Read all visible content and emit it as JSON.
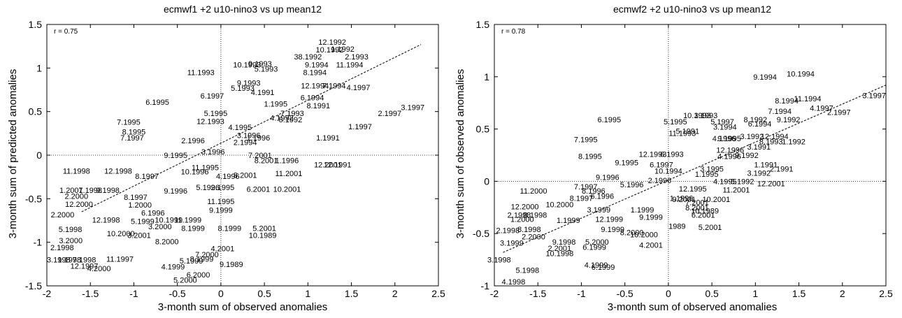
{
  "chart_data": [
    {
      "type": "scatter",
      "title": "ecmwf1 +2 u10-nino3 vs up mean12",
      "xlabel": "3-month sum of observed anomalies",
      "ylabel": "3-month sum of predicted anomalies",
      "annotation": "r = 0.75",
      "xlim": [
        -2,
        2.5
      ],
      "ylim": [
        -1.5,
        1.5
      ],
      "xticks": [
        "-2",
        "-1.5",
        "-1",
        "-0.5",
        "0",
        "0.5",
        "1",
        "1.5",
        "2",
        "2.5"
      ],
      "yticks": [
        "-1.5",
        "-1",
        "-0.5",
        "0",
        "0.5",
        "1",
        "1.5"
      ],
      "fit_line": {
        "x": [
          -1.6,
          2.3
        ],
        "y": [
          -0.65,
          1.27
        ]
      },
      "points": [
        {
          "label": "12.1992",
          "x": 1.28,
          "y": 1.3
        },
        {
          "label": "10.1992",
          "x": 1.25,
          "y": 1.21
        },
        {
          "label": "1.1992",
          "x": 1.4,
          "y": 1.22
        },
        {
          "label": "38.1992",
          "x": 1.0,
          "y": 1.13
        },
        {
          "label": "2.1993",
          "x": 1.56,
          "y": 1.13
        },
        {
          "label": "10.1993",
          "x": 0.3,
          "y": 1.04
        },
        {
          "label": "9.1993",
          "x": 0.45,
          "y": 1.05
        },
        {
          "label": "5.1993",
          "x": 0.52,
          "y": 0.99
        },
        {
          "label": "9.1994",
          "x": 1.1,
          "y": 1.04
        },
        {
          "label": "11.1994",
          "x": 1.48,
          "y": 1.04
        },
        {
          "label": "8.1994",
          "x": 1.08,
          "y": 0.95
        },
        {
          "label": "11.1993",
          "x": -0.23,
          "y": 0.95
        },
        {
          "label": "9.1993",
          "x": 0.32,
          "y": 0.83
        },
        {
          "label": "5.1993",
          "x": 0.25,
          "y": 0.77
        },
        {
          "label": "4.1991",
          "x": 0.48,
          "y": 0.72
        },
        {
          "label": "12.1994",
          "x": 1.08,
          "y": 0.8
        },
        {
          "label": "7.1994",
          "x": 1.3,
          "y": 0.8
        },
        {
          "label": "4.1997",
          "x": 1.58,
          "y": 0.78
        },
        {
          "label": "6.1997",
          "x": -0.1,
          "y": 0.68
        },
        {
          "label": "6.1995",
          "x": -0.73,
          "y": 0.61
        },
        {
          "label": "1.1995",
          "x": 0.63,
          "y": 0.59
        },
        {
          "label": "6.1994",
          "x": 1.05,
          "y": 0.66
        },
        {
          "label": "8.1991",
          "x": 1.12,
          "y": 0.57
        },
        {
          "label": "5.1995",
          "x": -0.06,
          "y": 0.48
        },
        {
          "label": "12.1993",
          "x": -0.12,
          "y": 0.39
        },
        {
          "label": "7.1995",
          "x": -1.06,
          "y": 0.38
        },
        {
          "label": "7.1993",
          "x": 0.82,
          "y": 0.48
        },
        {
          "label": "4.1992",
          "x": 0.7,
          "y": 0.43
        },
        {
          "label": "5.1992",
          "x": 0.8,
          "y": 0.41
        },
        {
          "label": "2.1997",
          "x": 1.94,
          "y": 0.48
        },
        {
          "label": "3.1997",
          "x": 2.34,
          "y": 0.55
        },
        {
          "label": "4.1995",
          "x": 0.22,
          "y": 0.32
        },
        {
          "label": "8.1995",
          "x": -1.0,
          "y": 0.27
        },
        {
          "label": "7.1997",
          "x": -1.02,
          "y": 0.2
        },
        {
          "label": "3.1996",
          "x": 0.32,
          "y": 0.23
        },
        {
          "label": "1.1996",
          "x": 0.43,
          "y": 0.2
        },
        {
          "label": "1.1991",
          "x": 1.23,
          "y": 0.2
        },
        {
          "label": "1.1997",
          "x": 1.6,
          "y": 0.33
        },
        {
          "label": "2.1996",
          "x": -0.32,
          "y": 0.17
        },
        {
          "label": "2.1994",
          "x": 0.28,
          "y": 0.15
        },
        {
          "label": "9.1995",
          "x": -0.52,
          "y": 0.0
        },
        {
          "label": "3.1996",
          "x": -0.09,
          "y": 0.04
        },
        {
          "label": "7.2001",
          "x": 0.45,
          "y": 0.0
        },
        {
          "label": "8.2001",
          "x": 0.52,
          "y": -0.06
        },
        {
          "label": "1.1996",
          "x": 0.76,
          "y": -0.06
        },
        {
          "label": "12.2001",
          "x": 1.23,
          "y": -0.11
        },
        {
          "label": "12.1991",
          "x": 1.34,
          "y": -0.11
        },
        {
          "label": "11.1998",
          "x": -1.66,
          "y": -0.18
        },
        {
          "label": "12.1998",
          "x": -1.18,
          "y": -0.18
        },
        {
          "label": "8.1997",
          "x": -0.85,
          "y": -0.24
        },
        {
          "label": "11.1995",
          "x": -0.18,
          "y": -0.14
        },
        {
          "label": "10.1996",
          "x": -0.3,
          "y": -0.19
        },
        {
          "label": "4.1996",
          "x": 0.08,
          "y": -0.24
        },
        {
          "label": "8.2001",
          "x": 0.28,
          "y": -0.23
        },
        {
          "label": "11.2001",
          "x": 0.78,
          "y": -0.21
        },
        {
          "label": "1.2001",
          "x": -1.72,
          "y": -0.4
        },
        {
          "label": "7.1998",
          "x": -1.5,
          "y": -0.4
        },
        {
          "label": "9.1998",
          "x": -1.3,
          "y": -0.4
        },
        {
          "label": "9.1996",
          "x": -0.52,
          "y": -0.41
        },
        {
          "label": "5.1996",
          "x": -0.15,
          "y": -0.37
        },
        {
          "label": "2.1995",
          "x": 0.02,
          "y": -0.37
        },
        {
          "label": "6.2001",
          "x": 0.43,
          "y": -0.39
        },
        {
          "label": "10.2001",
          "x": 0.76,
          "y": -0.39
        },
        {
          "label": "2.2000",
          "x": -1.66,
          "y": -0.47
        },
        {
          "label": "8.1997",
          "x": -0.98,
          "y": -0.48
        },
        {
          "label": "12.2000",
          "x": -1.63,
          "y": -0.56
        },
        {
          "label": "1.2000",
          "x": -0.93,
          "y": -0.57
        },
        {
          "label": "11.1995",
          "x": 0.0,
          "y": -0.53
        },
        {
          "label": "2.2000",
          "x": -1.82,
          "y": -0.68
        },
        {
          "label": "6.1996",
          "x": -0.78,
          "y": -0.66
        },
        {
          "label": "9.1999",
          "x": 0.0,
          "y": -0.63
        },
        {
          "label": "12.1998",
          "x": -1.32,
          "y": -0.74
        },
        {
          "label": "5.1999",
          "x": -0.9,
          "y": -0.76
        },
        {
          "label": "10.1999",
          "x": -0.6,
          "y": -0.74
        },
        {
          "label": "11.1999",
          "x": -0.38,
          "y": -0.74
        },
        {
          "label": "5.1998",
          "x": -1.73,
          "y": -0.85
        },
        {
          "label": "10.2000",
          "x": -1.15,
          "y": -0.9
        },
        {
          "label": "3.2001",
          "x": -0.94,
          "y": -0.92
        },
        {
          "label": "3.2000",
          "x": -0.7,
          "y": -0.82
        },
        {
          "label": "8.1999",
          "x": -0.32,
          "y": -0.84
        },
        {
          "label": "8.1999",
          "x": 0.1,
          "y": -0.84
        },
        {
          "label": "5.2001",
          "x": 0.5,
          "y": -0.84
        },
        {
          "label": "10.1989",
          "x": 0.48,
          "y": -0.92
        },
        {
          "label": "3.2000",
          "x": -1.86,
          "y": -0.98
        },
        {
          "label": "8.2000",
          "x": -0.62,
          "y": -0.99
        },
        {
          "label": "2.1998",
          "x": -1.96,
          "y": -1.06
        },
        {
          "label": "4.2001",
          "x": 0.02,
          "y": -1.07
        },
        {
          "label": "7.2000",
          "x": -0.16,
          "y": -1.14
        },
        {
          "label": "3.1998",
          "x": -2.0,
          "y": -1.2
        },
        {
          "label": "1.1998",
          "x": -1.74,
          "y": -1.2
        },
        {
          "label": "7.1998",
          "x": -1.57,
          "y": -1.2
        },
        {
          "label": "11.1997",
          "x": -1.16,
          "y": -1.19
        },
        {
          "label": "8.1999",
          "x": -0.22,
          "y": -1.19
        },
        {
          "label": "5.1999",
          "x": -0.34,
          "y": -1.21
        },
        {
          "label": "12.1997",
          "x": -1.57,
          "y": -1.27
        },
        {
          "label": "4.2000",
          "x": -1.4,
          "y": -1.3
        },
        {
          "label": "4.1999",
          "x": -0.55,
          "y": -1.28
        },
        {
          "label": "9.1989",
          "x": 0.12,
          "y": -1.25
        },
        {
          "label": "6.2000",
          "x": -0.26,
          "y": -1.37
        },
        {
          "label": "5.2000",
          "x": -0.41,
          "y": -1.43
        }
      ]
    },
    {
      "type": "scatter",
      "title": "ecmwf2 +2 u10-nino3 vs up mean12",
      "xlabel": "3-month sum of observed anomalies",
      "ylabel": "3-month sum of observed anomalies",
      "annotation": "r = 0.78",
      "xlim": [
        -2,
        2.5
      ],
      "ylim": [
        -1,
        1.5
      ],
      "xticks": [
        "-2",
        "-1.5",
        "-1",
        "-0.5",
        "0",
        "0.5",
        "1",
        "1.5",
        "2",
        "2.5"
      ],
      "yticks": [
        "-1",
        "-0.5",
        "0",
        "0.5",
        "1",
        "1.5"
      ],
      "fit_line": {
        "x": [
          -1.9,
          2.5
        ],
        "y": [
          -0.68,
          0.92
        ]
      },
      "points": [
        {
          "label": "9.1994",
          "x": 1.11,
          "y": 1.0
        },
        {
          "label": "10.1994",
          "x": 1.52,
          "y": 1.03
        },
        {
          "label": "3.1997",
          "x": 2.5,
          "y": 0.82
        },
        {
          "label": "8.1994",
          "x": 1.36,
          "y": 0.77
        },
        {
          "label": "11.1994",
          "x": 1.6,
          "y": 0.79
        },
        {
          "label": "7.1994",
          "x": 1.28,
          "y": 0.67
        },
        {
          "label": "4.1997",
          "x": 1.76,
          "y": 0.7
        },
        {
          "label": "2.1997",
          "x": 1.96,
          "y": 0.66
        },
        {
          "label": "10.1993",
          "x": 0.33,
          "y": 0.63
        },
        {
          "label": "3.1993",
          "x": 0.43,
          "y": 0.63
        },
        {
          "label": "6.1995",
          "x": -0.68,
          "y": 0.59
        },
        {
          "label": "5.1995",
          "x": 0.08,
          "y": 0.57
        },
        {
          "label": "5.1997",
          "x": 0.62,
          "y": 0.57
        },
        {
          "label": "3.1994",
          "x": 0.65,
          "y": 0.52
        },
        {
          "label": "8.1992",
          "x": 1.0,
          "y": 0.59
        },
        {
          "label": "6.1994",
          "x": 1.05,
          "y": 0.55
        },
        {
          "label": "9.1992",
          "x": 1.38,
          "y": 0.59
        },
        {
          "label": "11.1993",
          "x": 0.16,
          "y": 0.46
        },
        {
          "label": "5.1991",
          "x": 0.22,
          "y": 0.48
        },
        {
          "label": "4.1996",
          "x": 0.64,
          "y": 0.41
        },
        {
          "label": "9.1995",
          "x": 0.7,
          "y": 0.41
        },
        {
          "label": "3.1992",
          "x": 0.96,
          "y": 0.43
        },
        {
          "label": "12.1994",
          "x": 1.22,
          "y": 0.43
        },
        {
          "label": "8.1993",
          "x": 1.18,
          "y": 0.38
        },
        {
          "label": "1.1992",
          "x": 1.44,
          "y": 0.38
        },
        {
          "label": "3.1991",
          "x": 1.04,
          "y": 0.33
        },
        {
          "label": "7.1995",
          "x": -0.95,
          "y": 0.4
        },
        {
          "label": "12.1993",
          "x": -0.18,
          "y": 0.26
        },
        {
          "label": "6.1993",
          "x": 0.04,
          "y": 0.26
        },
        {
          "label": "12.1996",
          "x": 0.71,
          "y": 0.3
        },
        {
          "label": "4.1996",
          "x": 0.7,
          "y": 0.24
        },
        {
          "label": "9.1992",
          "x": 0.9,
          "y": 0.25
        },
        {
          "label": "8.1995",
          "x": -0.9,
          "y": 0.24
        },
        {
          "label": "9.1995",
          "x": -0.48,
          "y": 0.18
        },
        {
          "label": "6.1997",
          "x": -0.08,
          "y": 0.16
        },
        {
          "label": "1.1991",
          "x": 1.12,
          "y": 0.16
        },
        {
          "label": "2.1991",
          "x": 1.3,
          "y": 0.12
        },
        {
          "label": "10.1994",
          "x": 0.0,
          "y": 0.1
        },
        {
          "label": "3.1995",
          "x": 0.5,
          "y": 0.12
        },
        {
          "label": "1.1995",
          "x": 0.44,
          "y": 0.07
        },
        {
          "label": "3.1992",
          "x": 1.04,
          "y": 0.08
        },
        {
          "label": "9.1996",
          "x": -0.7,
          "y": 0.04
        },
        {
          "label": "2.1996",
          "x": -0.1,
          "y": 0.01
        },
        {
          "label": "4.1995",
          "x": 0.65,
          "y": 0.0
        },
        {
          "label": "5.1992",
          "x": 0.85,
          "y": 0.0
        },
        {
          "label": "12.2001",
          "x": 1.18,
          "y": -0.02
        },
        {
          "label": "7.1997",
          "x": -0.95,
          "y": -0.05
        },
        {
          "label": "5.1996",
          "x": -0.42,
          "y": -0.03
        },
        {
          "label": "8.1996",
          "x": -0.86,
          "y": -0.09
        },
        {
          "label": "12.1995",
          "x": 0.28,
          "y": -0.07
        },
        {
          "label": "11.2001",
          "x": 0.78,
          "y": -0.08
        },
        {
          "label": "11.2000",
          "x": -1.55,
          "y": -0.09
        },
        {
          "label": "6.1996",
          "x": -0.76,
          "y": -0.14
        },
        {
          "label": "1.1996",
          "x": 0.15,
          "y": -0.16
        },
        {
          "label": "8.1997",
          "x": -1.0,
          "y": -0.16
        },
        {
          "label": "12.2000",
          "x": -1.65,
          "y": -0.24
        },
        {
          "label": "10.2000",
          "x": -1.25,
          "y": -0.22
        },
        {
          "label": "9.2001",
          "x": 0.18,
          "y": -0.17
        },
        {
          "label": "10.2001",
          "x": 0.55,
          "y": -0.17
        },
        {
          "label": "7.2001",
          "x": 0.33,
          "y": -0.2
        },
        {
          "label": "8.2001",
          "x": 0.33,
          "y": -0.25
        },
        {
          "label": "3.1999",
          "x": -0.8,
          "y": -0.27
        },
        {
          "label": "1.1999",
          "x": -0.3,
          "y": -0.27
        },
        {
          "label": "6.2001",
          "x": 0.4,
          "y": -0.32
        },
        {
          "label": "10.1989",
          "x": 0.42,
          "y": -0.28
        },
        {
          "label": "2.1998",
          "x": -1.85,
          "y": -0.32
        },
        {
          "label": "8.1998",
          "x": -1.53,
          "y": -0.32
        },
        {
          "label": "1.2000",
          "x": -1.68,
          "y": -0.36
        },
        {
          "label": "9.1999",
          "x": -0.2,
          "y": -0.34
        },
        {
          "label": "12.1999",
          "x": -0.68,
          "y": -0.36
        },
        {
          "label": "1.1999",
          "x": -1.15,
          "y": -0.37
        },
        {
          "label": "1989",
          "x": 0.1,
          "y": -0.43
        },
        {
          "label": "5.2001",
          "x": 0.48,
          "y": -0.44
        },
        {
          "label": "2.1998",
          "x": -1.98,
          "y": -0.47
        },
        {
          "label": "8.1998",
          "x": -1.6,
          "y": -0.46
        },
        {
          "label": "9.1999",
          "x": -0.64,
          "y": -0.46
        },
        {
          "label": "8.2000",
          "x": -0.42,
          "y": -0.49
        },
        {
          "label": "10.2000",
          "x": -0.28,
          "y": -0.51
        },
        {
          "label": "2.2000",
          "x": -1.55,
          "y": -0.53
        },
        {
          "label": "3.1999",
          "x": -1.8,
          "y": -0.59
        },
        {
          "label": "9.1998",
          "x": -1.2,
          "y": -0.58
        },
        {
          "label": "5.2000",
          "x": -0.82,
          "y": -0.58
        },
        {
          "label": "4.2001",
          "x": -0.2,
          "y": -0.61
        },
        {
          "label": "6.1999",
          "x": -0.85,
          "y": -0.63
        },
        {
          "label": "2.2001",
          "x": -1.25,
          "y": -0.64
        },
        {
          "label": "10.1998",
          "x": -1.25,
          "y": -0.69
        },
        {
          "label": "3.1998",
          "x": -2.08,
          "y": -0.75
        },
        {
          "label": "4.1999",
          "x": -0.83,
          "y": -0.8
        },
        {
          "label": "6.1999",
          "x": -0.75,
          "y": -0.82
        },
        {
          "label": "5.1998",
          "x": -1.62,
          "y": -0.85
        },
        {
          "label": "4.1998",
          "x": -1.78,
          "y": -0.96
        }
      ]
    }
  ]
}
